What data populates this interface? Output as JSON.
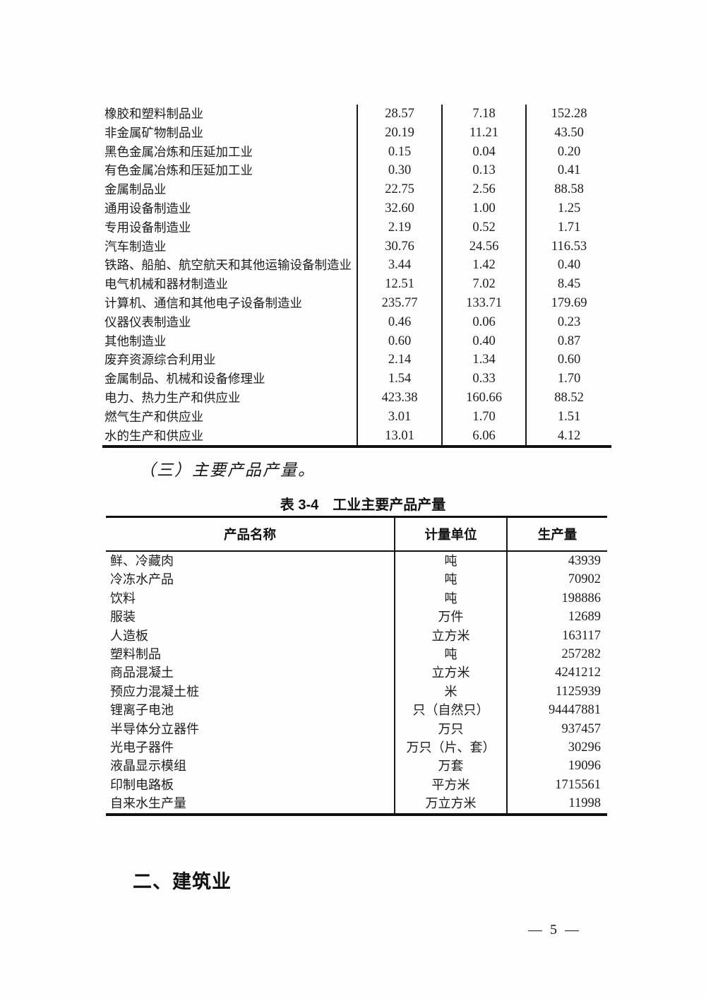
{
  "section_heading": "（三）主要产品产量。",
  "industry_table": {
    "rows": [
      {
        "label": "橡胶和塑料制品业",
        "values": [
          "28.57",
          "7.18",
          "152.28"
        ]
      },
      {
        "label": "非金属矿物制品业",
        "values": [
          "20.19",
          "11.21",
          "43.50"
        ]
      },
      {
        "label": "黑色金属冶炼和压延加工业",
        "values": [
          "0.15",
          "0.04",
          "0.20"
        ]
      },
      {
        "label": "有色金属冶炼和压延加工业",
        "values": [
          "0.30",
          "0.13",
          "0.41"
        ]
      },
      {
        "label": "金属制品业",
        "values": [
          "22.75",
          "2.56",
          "88.58"
        ]
      },
      {
        "label": "通用设备制造业",
        "values": [
          "32.60",
          "1.00",
          "1.25"
        ]
      },
      {
        "label": "专用设备制造业",
        "values": [
          "2.19",
          "0.52",
          "1.71"
        ]
      },
      {
        "label": "汽车制造业",
        "values": [
          "30.76",
          "24.56",
          "116.53"
        ]
      },
      {
        "label": "铁路、船舶、航空航天和其他运输设备制造业",
        "values": [
          "3.44",
          "1.42",
          "0.40"
        ]
      },
      {
        "label": "电气机械和器材制造业",
        "values": [
          "12.51",
          "7.02",
          "8.45"
        ]
      },
      {
        "label": "计算机、通信和其他电子设备制造业",
        "values": [
          "235.77",
          "133.71",
          "179.69"
        ]
      },
      {
        "label": "仪器仪表制造业",
        "values": [
          "0.46",
          "0.06",
          "0.23"
        ]
      },
      {
        "label": "其他制造业",
        "values": [
          "0.60",
          "0.40",
          "0.87"
        ]
      },
      {
        "label": "废弃资源综合利用业",
        "values": [
          "2.14",
          "1.34",
          "0.60"
        ]
      },
      {
        "label": "金属制品、机械和设备修理业",
        "values": [
          "1.54",
          "0.33",
          "1.70"
        ]
      },
      {
        "label": "电力、热力生产和供应业",
        "values": [
          "423.38",
          "160.66",
          "88.52"
        ]
      },
      {
        "label": "燃气生产和供应业",
        "values": [
          "3.01",
          "1.70",
          "1.51"
        ]
      },
      {
        "label": "水的生产和供应业",
        "values": [
          "13.01",
          "6.06",
          "4.12"
        ]
      }
    ]
  },
  "product_table": {
    "title": "表 3-4　工业主要产品产量",
    "headers": [
      "产品名称",
      "计量单位",
      "生产量"
    ],
    "rows": [
      {
        "name": "鲜、冷藏肉",
        "unit": "吨",
        "quantity": "43939"
      },
      {
        "name": "冷冻水产品",
        "unit": "吨",
        "quantity": "70902"
      },
      {
        "name": "饮料",
        "unit": "吨",
        "quantity": "198886"
      },
      {
        "name": "服装",
        "unit": "万件",
        "quantity": "12689"
      },
      {
        "name": "人造板",
        "unit": "立方米",
        "quantity": "163117"
      },
      {
        "name": "塑料制品",
        "unit": "吨",
        "quantity": "257282"
      },
      {
        "name": "商品混凝土",
        "unit": "立方米",
        "quantity": "4241212"
      },
      {
        "name": "预应力混凝土桩",
        "unit": "米",
        "quantity": "1125939"
      },
      {
        "name": "锂离子电池",
        "unit": "只（自然只）",
        "quantity": "94447881"
      },
      {
        "name": "半导体分立器件",
        "unit": "万只",
        "quantity": "937457"
      },
      {
        "name": "光电子器件",
        "unit": "万只（片、套）",
        "quantity": "30296"
      },
      {
        "name": "液晶显示模组",
        "unit": "万套",
        "quantity": "19096"
      },
      {
        "name": "印制电路板",
        "unit": "平方米",
        "quantity": "1715561"
      },
      {
        "name": "自来水生产量",
        "unit": "万立方米",
        "quantity": "11998"
      }
    ]
  },
  "section2_heading": "二、建筑业",
  "footer": {
    "page_number": "— 5 —"
  }
}
